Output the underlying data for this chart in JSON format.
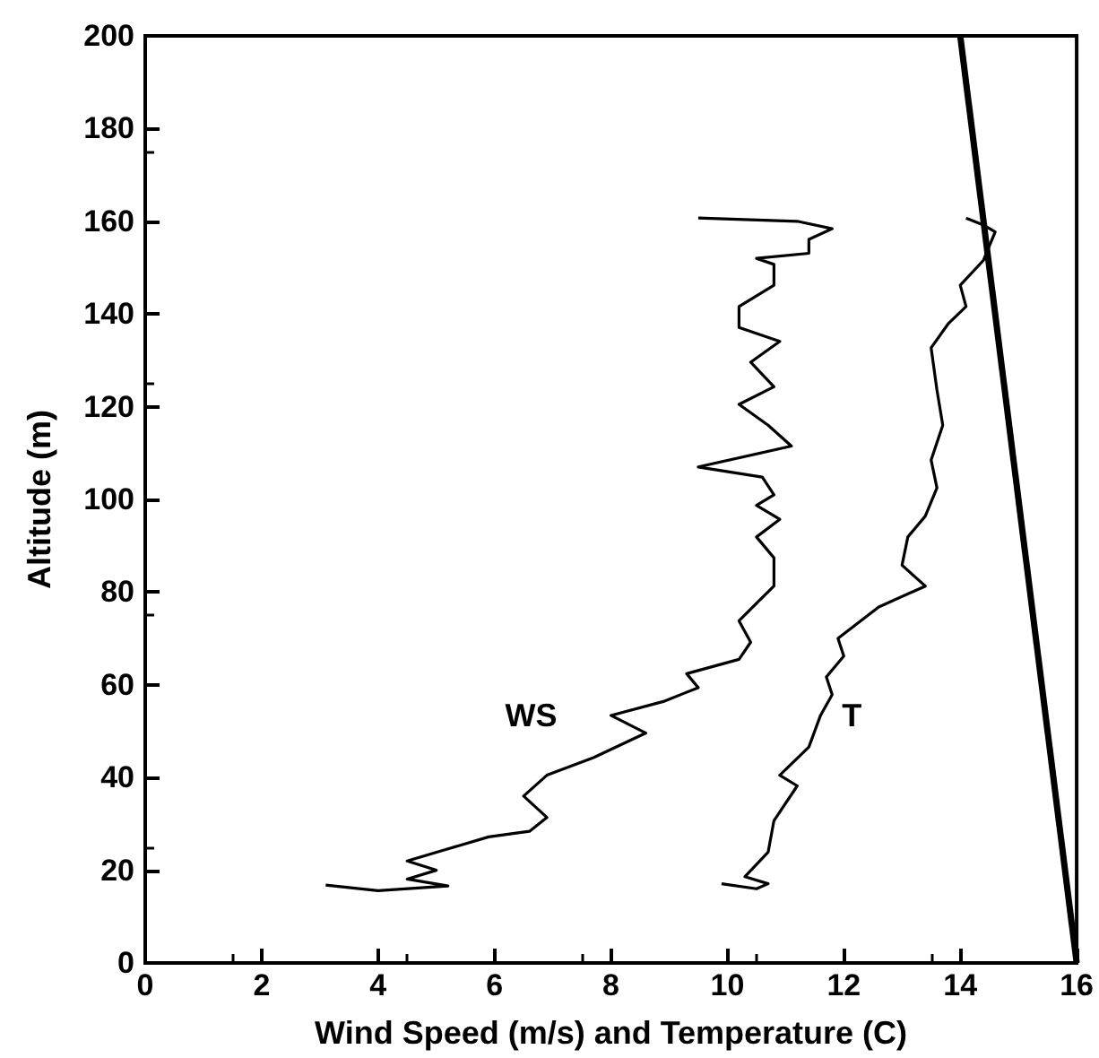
{
  "chart_data": {
    "type": "line",
    "xlabel": "Wind Speed (m/s) and Temperature (C)",
    "ylabel": "Altitude (m)",
    "xlim": [
      0,
      16
    ],
    "xticks": [
      0,
      2,
      4,
      6,
      8,
      10,
      12,
      14,
      16
    ],
    "ylim": [
      0,
      200
    ],
    "yticks": [
      0,
      20,
      40,
      60,
      80,
      100,
      120,
      140,
      160,
      180,
      200
    ],
    "grid": false,
    "marker": "none",
    "line_style": "solid",
    "series": [
      {
        "name": "WS",
        "color": "#000000",
        "x": [
          3.1,
          4.0,
          5.2,
          4.5,
          5.0,
          4.5,
          5.2,
          5.9,
          6.6,
          6.9,
          6.5,
          6.9,
          7.7,
          8.6,
          8.0,
          8.9,
          9.5,
          9.3,
          10.2,
          10.4,
          10.2,
          10.5,
          10.8,
          10.8,
          10.5,
          10.9,
          10.5,
          10.8,
          10.6,
          9.5,
          11.1,
          10.7,
          10.2,
          10.8,
          10.4,
          10.9,
          10.2,
          10.2,
          10.8,
          10.8,
          10.5,
          11.4,
          11.4,
          11.8,
          11.2,
          9.5
        ],
        "values": [
          16.8,
          15.6,
          16.6,
          18.1,
          20,
          22,
          24.6,
          27.2,
          28.4,
          31.4,
          36,
          40.5,
          44.3,
          49.6,
          53.4,
          56.4,
          59.4,
          62.4,
          65.5,
          69.2,
          73.8,
          77.6,
          81.3,
          87.4,
          91.9,
          95.7,
          98.7,
          101,
          104.8,
          107,
          111.5,
          116,
          120.5,
          124.3,
          129.6,
          134.1,
          137.1,
          141.6,
          146.2,
          150.7,
          152,
          153.1,
          156.1,
          158.4,
          160,
          160.7
        ]
      },
      {
        "name": "T",
        "color": "#000000",
        "x": [
          9.9,
          10.5,
          10.7,
          10.3,
          10.7,
          10.8,
          11.2,
          10.9,
          11.4,
          11.6,
          11.8,
          11.7,
          12.0,
          11.9,
          12.6,
          13.4,
          13.0,
          13.1,
          13.4,
          13.6,
          13.5,
          13.7,
          13.6,
          13.5,
          13.8,
          14.1,
          14.0,
          14.4,
          14.6,
          14.4,
          14.1
        ],
        "values": [
          17.1,
          16,
          17.1,
          18.6,
          23.9,
          30.7,
          38.2,
          40.5,
          46.6,
          53.4,
          57.9,
          61.7,
          66.2,
          70,
          76.8,
          81.3,
          85.8,
          91.9,
          96.4,
          102.5,
          108.5,
          116,
          123.6,
          132.7,
          138,
          141.6,
          146.2,
          151.6,
          157.7,
          159.2,
          160.7
        ]
      },
      {
        "color": "#000000",
        "x": [
          14,
          16
        ],
        "values": [
          200,
          0
        ]
      }
    ]
  }
}
